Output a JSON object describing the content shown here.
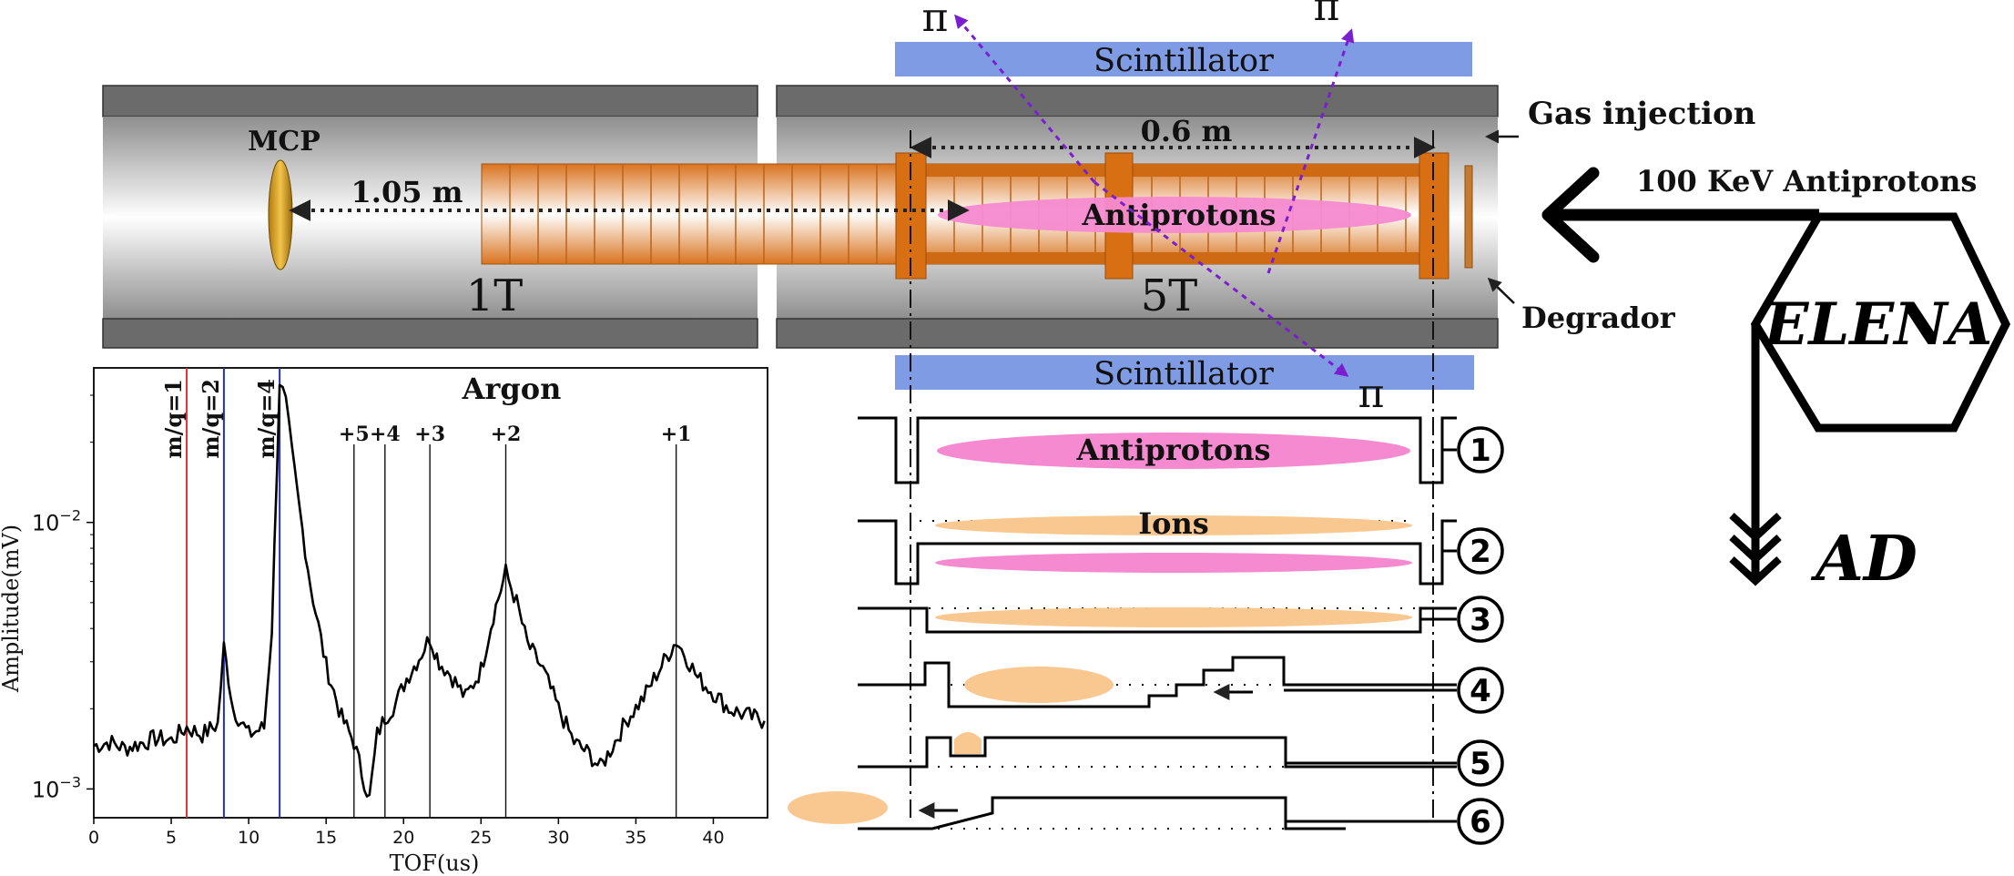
{
  "apparatus": {
    "scintillator_label": "Scintillator",
    "gas_injection": "Gas injection",
    "beam_label": "100 KeV Antiprotons",
    "degrador": "Degrador",
    "mcp": "MCP",
    "distance_flight": "1.05 m",
    "distance_trap": "0.6 m",
    "antiprotons": "Antiprotons",
    "field_low": "1T",
    "field_high": "5T",
    "pion": "π",
    "elena": "ELENA",
    "ad": "AD"
  },
  "sequence": {
    "antiprotons": "Antiprotons",
    "ions": "Ions",
    "steps": [
      "1",
      "2",
      "3",
      "4",
      "5",
      "6"
    ]
  },
  "chart_data": {
    "type": "line",
    "title": "Argon",
    "xlabel": "TOF(us)",
    "ylabel": "Amplitude(mV)",
    "y_scale": "log",
    "xlim": [
      0,
      43.5
    ],
    "ylim": [
      0.00078,
      0.038
    ],
    "x_ticks": [
      "0",
      "5",
      "10",
      "15",
      "20",
      "25",
      "30",
      "35",
      "40"
    ],
    "y_ticks": [
      {
        "value": 0.01,
        "base": "10",
        "exp": "−2"
      },
      {
        "value": 0.001,
        "base": "10",
        "exp": "−3"
      }
    ],
    "markers": [
      {
        "label": "m/q=1",
        "x": 6.0,
        "color": "#e03030"
      },
      {
        "label": "m/q=2",
        "x": 8.4,
        "color": "#2030c0"
      },
      {
        "label": "m/q=4",
        "x": 12.0,
        "color": "#2030c0"
      }
    ],
    "charge_states": [
      {
        "label": "+5",
        "x": 16.8
      },
      {
        "label": "+4",
        "x": 18.8
      },
      {
        "label": "+3",
        "x": 21.7
      },
      {
        "label": "+2",
        "x": 26.6
      },
      {
        "label": "+1",
        "x": 37.6
      }
    ],
    "series": [
      {
        "x": [
          0,
          1,
          2,
          3,
          4,
          5,
          6,
          7,
          8.0,
          8.4,
          9.0,
          10,
          11,
          11.5,
          12.0,
          12.4,
          12.8,
          13.3,
          14,
          15,
          16,
          16.8,
          17.3,
          17.8,
          18.3,
          18.8,
          19.5,
          20.2,
          21,
          21.7,
          22.3,
          23,
          24,
          25,
          25.8,
          26.6,
          27.3,
          28,
          29,
          30,
          31,
          32,
          32.7,
          33.5,
          34.5,
          35.5,
          36.5,
          37.6,
          38.3,
          39,
          40,
          41,
          42,
          43.3
        ],
        "y": [
          0.00145,
          0.0015,
          0.00142,
          0.00148,
          0.00155,
          0.00152,
          0.0017,
          0.0016,
          0.00175,
          0.0034,
          0.002,
          0.0016,
          0.0017,
          0.004,
          0.034,
          0.028,
          0.018,
          0.011,
          0.0058,
          0.0029,
          0.00185,
          0.0015,
          0.00115,
          0.00092,
          0.0016,
          0.00185,
          0.0021,
          0.0026,
          0.0031,
          0.0037,
          0.003,
          0.0027,
          0.0022,
          0.0028,
          0.0045,
          0.0065,
          0.005,
          0.0035,
          0.0028,
          0.002,
          0.0015,
          0.00135,
          0.0012,
          0.00145,
          0.00185,
          0.0022,
          0.0028,
          0.0036,
          0.0031,
          0.0026,
          0.0023,
          0.002,
          0.0019,
          0.0018
        ]
      }
    ]
  }
}
